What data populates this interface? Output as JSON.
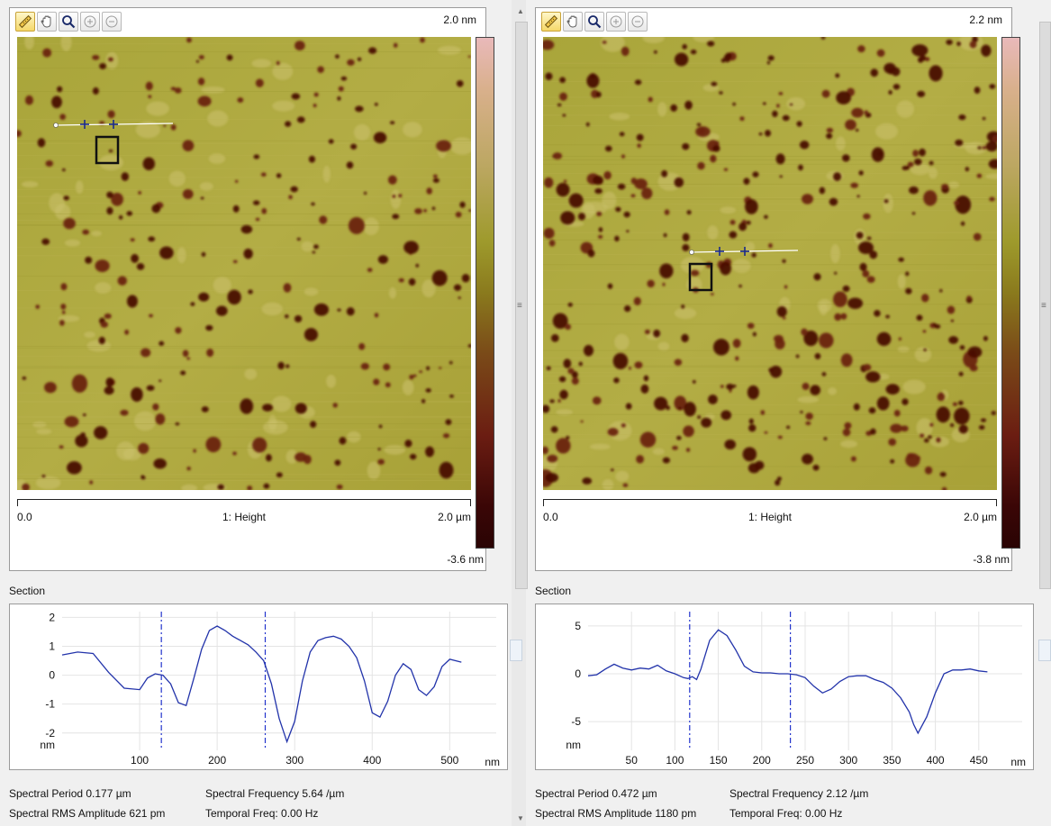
{
  "toolbar": {
    "tools": [
      "measure-tool",
      "pan-tool",
      "zoom-tool",
      "zoom-in-tool",
      "zoom-out-tool"
    ]
  },
  "left": {
    "image": {
      "colorbar_max": "2.0 nm",
      "colorbar_min": "-3.6 nm",
      "scale_start": "0.0",
      "channel": "1: Height",
      "scale_end": "2.0 µm",
      "seed": 7,
      "feature_count": 235
    },
    "section_label": "Section",
    "chart_data": {
      "type": "line",
      "x": [
        0,
        20,
        40,
        60,
        80,
        100,
        110,
        120,
        130,
        140,
        150,
        160,
        170,
        180,
        190,
        200,
        210,
        220,
        230,
        240,
        250,
        260,
        270,
        280,
        290,
        300,
        310,
        320,
        330,
        340,
        350,
        360,
        370,
        380,
        390,
        400,
        410,
        420,
        430,
        440,
        450,
        460,
        470,
        480,
        490,
        500,
        515
      ],
      "y": [
        0.7,
        0.8,
        0.75,
        0.1,
        -0.45,
        -0.5,
        -0.1,
        0.05,
        0.0,
        -0.3,
        -0.95,
        -1.05,
        -0.1,
        0.9,
        1.55,
        1.7,
        1.55,
        1.35,
        1.2,
        1.05,
        0.8,
        0.5,
        -0.3,
        -1.5,
        -2.3,
        -1.6,
        -0.2,
        0.8,
        1.2,
        1.3,
        1.35,
        1.25,
        1.0,
        0.6,
        -0.2,
        -1.3,
        -1.45,
        -0.9,
        0.0,
        0.4,
        0.2,
        -0.5,
        -0.7,
        -0.4,
        0.3,
        0.55,
        0.45
      ],
      "xlim": [
        0,
        560
      ],
      "ylim": [
        -2.6,
        2.2
      ],
      "yticks": [
        2,
        1,
        0,
        -1,
        -2
      ],
      "xticks": [
        100,
        200,
        300,
        400,
        500
      ],
      "ylabel": "nm",
      "xlabel": "nm",
      "cursors": [
        128,
        262
      ],
      "line_color": "#2233aa"
    },
    "info": {
      "spectral_period": "Spectral Period 0.177 µm",
      "spectral_frequency": "Spectral Frequency 5.64 /µm",
      "rms_amplitude": "Spectral RMS Amplitude 621 pm",
      "temporal_freq": "Temporal Freq: 0.00 Hz"
    }
  },
  "right": {
    "image": {
      "colorbar_max": "2.2 nm",
      "colorbar_min": "-3.8 nm",
      "scale_start": "0.0",
      "channel": "1: Height",
      "scale_end": "2.0 µm",
      "seed": 19,
      "feature_count": 380
    },
    "section_label": "Section",
    "chart_data": {
      "type": "line",
      "x": [
        0,
        10,
        20,
        30,
        40,
        50,
        60,
        70,
        80,
        90,
        100,
        110,
        115,
        120,
        125,
        130,
        140,
        150,
        160,
        170,
        180,
        190,
        200,
        210,
        220,
        230,
        240,
        250,
        260,
        270,
        280,
        290,
        300,
        310,
        320,
        330,
        340,
        350,
        360,
        370,
        375,
        380,
        390,
        400,
        410,
        420,
        430,
        440,
        450,
        460
      ],
      "y": [
        -0.2,
        -0.1,
        0.5,
        1.0,
        0.6,
        0.4,
        0.6,
        0.5,
        0.9,
        0.3,
        0.0,
        -0.4,
        -0.5,
        -0.3,
        -0.6,
        0.5,
        3.5,
        4.6,
        4.0,
        2.5,
        0.8,
        0.2,
        0.1,
        0.1,
        0.0,
        0.0,
        -0.1,
        -0.4,
        -1.3,
        -2.0,
        -1.6,
        -0.8,
        -0.3,
        -0.2,
        -0.2,
        -0.6,
        -0.9,
        -1.5,
        -2.5,
        -4.0,
        -5.3,
        -6.2,
        -4.5,
        -2.0,
        0.0,
        0.4,
        0.4,
        0.5,
        0.3,
        0.2
      ],
      "xlim": [
        0,
        500
      ],
      "ylim": [
        -8,
        6.5
      ],
      "yticks": [
        5,
        0,
        -5
      ],
      "xticks": [
        50,
        100,
        150,
        200,
        250,
        300,
        350,
        400,
        450
      ],
      "ylabel": "nm",
      "xlabel": "nm",
      "cursors": [
        117,
        233
      ],
      "line_color": "#2233aa"
    },
    "info": {
      "spectral_period": "Spectral Period 0.472 µm",
      "spectral_frequency": "Spectral Frequency 2.12 /µm",
      "rms_amplitude": "Spectral RMS Amplitude 1180 pm",
      "temporal_freq": "Temporal Freq: 0.00 Hz"
    }
  }
}
